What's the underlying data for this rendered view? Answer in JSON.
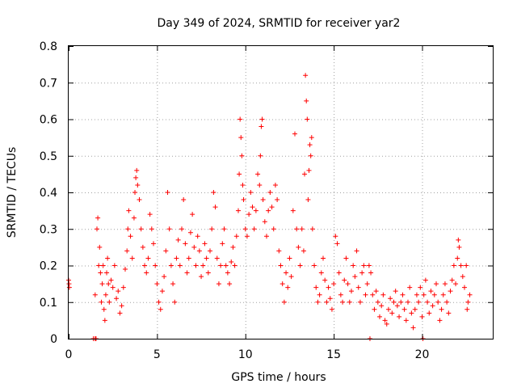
{
  "chart_data": {
    "type": "scatter",
    "title": "Day 349 of 2024, SRMTID for receiver yar2",
    "xlabel": "GPS time / hours",
    "ylabel": "SRMTID / TECUs",
    "xlim": [
      0,
      24
    ],
    "ylim": [
      0,
      0.8
    ],
    "xticks": [
      0,
      5,
      10,
      15,
      20
    ],
    "xtick_labels": [
      "0",
      "5",
      "10",
      "15",
      "20"
    ],
    "yticks": [
      0,
      0.1,
      0.2,
      0.3,
      0.4,
      0.5,
      0.6,
      0.7,
      0.8
    ],
    "ytick_labels": [
      "0",
      "0.1",
      "0.2",
      "0.3",
      "0.4",
      "0.5",
      "0.6",
      "0.7",
      "0.8"
    ],
    "grid": true,
    "marker": "+",
    "series": [
      {
        "name": "yar2",
        "color": "#ff0000",
        "points": [
          [
            0.0,
            0.16
          ],
          [
            0.02,
            0.15
          ],
          [
            0.04,
            0.14
          ],
          [
            1.4,
            0.0
          ],
          [
            1.5,
            0.0
          ],
          [
            1.55,
            0.0
          ],
          [
            1.5,
            0.12
          ],
          [
            1.6,
            0.3
          ],
          [
            1.65,
            0.33
          ],
          [
            1.7,
            0.2
          ],
          [
            1.75,
            0.25
          ],
          [
            1.8,
            0.18
          ],
          [
            1.85,
            0.1
          ],
          [
            1.9,
            0.15
          ],
          [
            1.95,
            0.2
          ],
          [
            2.0,
            0.08
          ],
          [
            2.05,
            0.05
          ],
          [
            2.1,
            0.12
          ],
          [
            2.15,
            0.18
          ],
          [
            2.2,
            0.22
          ],
          [
            2.25,
            0.15
          ],
          [
            2.3,
            0.1
          ],
          [
            2.4,
            0.16
          ],
          [
            2.5,
            0.14
          ],
          [
            2.6,
            0.2
          ],
          [
            2.7,
            0.11
          ],
          [
            2.8,
            0.13
          ],
          [
            2.9,
            0.07
          ],
          [
            3.0,
            0.09
          ],
          [
            3.1,
            0.14
          ],
          [
            3.2,
            0.19
          ],
          [
            3.3,
            0.24
          ],
          [
            3.35,
            0.3
          ],
          [
            3.4,
            0.35
          ],
          [
            3.5,
            0.28
          ],
          [
            3.6,
            0.22
          ],
          [
            3.7,
            0.33
          ],
          [
            3.75,
            0.4
          ],
          [
            3.8,
            0.44
          ],
          [
            3.85,
            0.46
          ],
          [
            3.9,
            0.42
          ],
          [
            4.0,
            0.38
          ],
          [
            4.1,
            0.3
          ],
          [
            4.2,
            0.25
          ],
          [
            4.3,
            0.2
          ],
          [
            4.4,
            0.18
          ],
          [
            4.5,
            0.22
          ],
          [
            4.6,
            0.34
          ],
          [
            4.7,
            0.3
          ],
          [
            4.8,
            0.26
          ],
          [
            4.9,
            0.2
          ],
          [
            5.0,
            0.15
          ],
          [
            5.1,
            0.1
          ],
          [
            5.2,
            0.08
          ],
          [
            5.3,
            0.13
          ],
          [
            5.4,
            0.17
          ],
          [
            5.5,
            0.24
          ],
          [
            5.6,
            0.4
          ],
          [
            5.7,
            0.3
          ],
          [
            5.8,
            0.2
          ],
          [
            5.9,
            0.15
          ],
          [
            6.0,
            0.1
          ],
          [
            6.1,
            0.22
          ],
          [
            6.2,
            0.27
          ],
          [
            6.3,
            0.2
          ],
          [
            6.4,
            0.3
          ],
          [
            6.5,
            0.38
          ],
          [
            6.6,
            0.26
          ],
          [
            6.7,
            0.18
          ],
          [
            6.8,
            0.22
          ],
          [
            6.9,
            0.29
          ],
          [
            7.0,
            0.34
          ],
          [
            7.1,
            0.25
          ],
          [
            7.2,
            0.2
          ],
          [
            7.3,
            0.28
          ],
          [
            7.4,
            0.24
          ],
          [
            7.5,
            0.17
          ],
          [
            7.6,
            0.2
          ],
          [
            7.7,
            0.26
          ],
          [
            7.8,
            0.22
          ],
          [
            7.9,
            0.18
          ],
          [
            8.0,
            0.24
          ],
          [
            8.1,
            0.3
          ],
          [
            8.2,
            0.4
          ],
          [
            8.3,
            0.36
          ],
          [
            8.4,
            0.22
          ],
          [
            8.5,
            0.15
          ],
          [
            8.6,
            0.2
          ],
          [
            8.7,
            0.26
          ],
          [
            8.8,
            0.3
          ],
          [
            8.9,
            0.2
          ],
          [
            9.0,
            0.18
          ],
          [
            9.1,
            0.15
          ],
          [
            9.2,
            0.21
          ],
          [
            9.3,
            0.25
          ],
          [
            9.4,
            0.2
          ],
          [
            9.5,
            0.28
          ],
          [
            9.6,
            0.35
          ],
          [
            9.65,
            0.45
          ],
          [
            9.7,
            0.6
          ],
          [
            9.75,
            0.55
          ],
          [
            9.8,
            0.5
          ],
          [
            9.85,
            0.42
          ],
          [
            9.9,
            0.38
          ],
          [
            10.0,
            0.3
          ],
          [
            10.1,
            0.28
          ],
          [
            10.2,
            0.34
          ],
          [
            10.3,
            0.4
          ],
          [
            10.4,
            0.36
          ],
          [
            10.5,
            0.3
          ],
          [
            10.6,
            0.35
          ],
          [
            10.7,
            0.45
          ],
          [
            10.8,
            0.42
          ],
          [
            10.85,
            0.5
          ],
          [
            10.9,
            0.58
          ],
          [
            10.95,
            0.6
          ],
          [
            11.0,
            0.38
          ],
          [
            11.1,
            0.32
          ],
          [
            11.2,
            0.28
          ],
          [
            11.3,
            0.35
          ],
          [
            11.4,
            0.4
          ],
          [
            11.5,
            0.36
          ],
          [
            11.6,
            0.3
          ],
          [
            11.7,
            0.42
          ],
          [
            11.8,
            0.38
          ],
          [
            11.9,
            0.24
          ],
          [
            12.0,
            0.2
          ],
          [
            12.1,
            0.15
          ],
          [
            12.2,
            0.1
          ],
          [
            12.3,
            0.18
          ],
          [
            12.4,
            0.14
          ],
          [
            12.5,
            0.22
          ],
          [
            12.6,
            0.17
          ],
          [
            12.7,
            0.35
          ],
          [
            12.8,
            0.56
          ],
          [
            12.9,
            0.3
          ],
          [
            13.0,
            0.25
          ],
          [
            13.1,
            0.2
          ],
          [
            13.2,
            0.3
          ],
          [
            13.3,
            0.24
          ],
          [
            13.35,
            0.45
          ],
          [
            13.4,
            0.72
          ],
          [
            13.45,
            0.65
          ],
          [
            13.5,
            0.6
          ],
          [
            13.55,
            0.38
          ],
          [
            13.6,
            0.46
          ],
          [
            13.65,
            0.53
          ],
          [
            13.7,
            0.5
          ],
          [
            13.75,
            0.55
          ],
          [
            13.8,
            0.3
          ],
          [
            13.9,
            0.2
          ],
          [
            14.0,
            0.14
          ],
          [
            14.1,
            0.1
          ],
          [
            14.2,
            0.12
          ],
          [
            14.3,
            0.18
          ],
          [
            14.4,
            0.22
          ],
          [
            14.5,
            0.16
          ],
          [
            14.6,
            0.1
          ],
          [
            14.7,
            0.14
          ],
          [
            14.8,
            0.11
          ],
          [
            14.9,
            0.08
          ],
          [
            15.0,
            0.15
          ],
          [
            15.1,
            0.28
          ],
          [
            15.2,
            0.26
          ],
          [
            15.3,
            0.18
          ],
          [
            15.4,
            0.12
          ],
          [
            15.5,
            0.1
          ],
          [
            15.6,
            0.16
          ],
          [
            15.7,
            0.22
          ],
          [
            15.8,
            0.15
          ],
          [
            15.9,
            0.1
          ],
          [
            16.0,
            0.13
          ],
          [
            16.1,
            0.2
          ],
          [
            16.2,
            0.17
          ],
          [
            16.3,
            0.24
          ],
          [
            16.4,
            0.14
          ],
          [
            16.5,
            0.1
          ],
          [
            16.6,
            0.18
          ],
          [
            16.7,
            0.2
          ],
          [
            16.8,
            0.12
          ],
          [
            16.9,
            0.15
          ],
          [
            17.0,
            0.2
          ],
          [
            17.05,
            0.0
          ],
          [
            17.1,
            0.18
          ],
          [
            17.2,
            0.12
          ],
          [
            17.3,
            0.08
          ],
          [
            17.4,
            0.13
          ],
          [
            17.5,
            0.1
          ],
          [
            17.6,
            0.06
          ],
          [
            17.7,
            0.09
          ],
          [
            17.8,
            0.12
          ],
          [
            17.9,
            0.05
          ],
          [
            18.0,
            0.04
          ],
          [
            18.1,
            0.08
          ],
          [
            18.2,
            0.11
          ],
          [
            18.3,
            0.07
          ],
          [
            18.4,
            0.1
          ],
          [
            18.5,
            0.13
          ],
          [
            18.6,
            0.09
          ],
          [
            18.7,
            0.06
          ],
          [
            18.8,
            0.1
          ],
          [
            18.9,
            0.12
          ],
          [
            19.0,
            0.08
          ],
          [
            19.1,
            0.05
          ],
          [
            19.2,
            0.1
          ],
          [
            19.3,
            0.14
          ],
          [
            19.4,
            0.07
          ],
          [
            19.5,
            0.03
          ],
          [
            19.6,
            0.08
          ],
          [
            19.7,
            0.12
          ],
          [
            19.8,
            0.1
          ],
          [
            19.9,
            0.14
          ],
          [
            20.0,
            0.06
          ],
          [
            20.05,
            0.0
          ],
          [
            20.1,
            0.12
          ],
          [
            20.2,
            0.16
          ],
          [
            20.3,
            0.1
          ],
          [
            20.4,
            0.07
          ],
          [
            20.5,
            0.13
          ],
          [
            20.6,
            0.09
          ],
          [
            20.7,
            0.12
          ],
          [
            20.8,
            0.15
          ],
          [
            20.9,
            0.1
          ],
          [
            21.0,
            0.05
          ],
          [
            21.1,
            0.08
          ],
          [
            21.2,
            0.12
          ],
          [
            21.3,
            0.15
          ],
          [
            21.4,
            0.1
          ],
          [
            21.5,
            0.07
          ],
          [
            21.6,
            0.13
          ],
          [
            21.7,
            0.16
          ],
          [
            21.8,
            0.2
          ],
          [
            21.9,
            0.15
          ],
          [
            22.0,
            0.22
          ],
          [
            22.05,
            0.27
          ],
          [
            22.1,
            0.25
          ],
          [
            22.2,
            0.2
          ],
          [
            22.3,
            0.17
          ],
          [
            22.4,
            0.14
          ],
          [
            22.5,
            0.2
          ],
          [
            22.55,
            0.08
          ],
          [
            22.6,
            0.1
          ],
          [
            22.7,
            0.12
          ]
        ]
      }
    ]
  }
}
